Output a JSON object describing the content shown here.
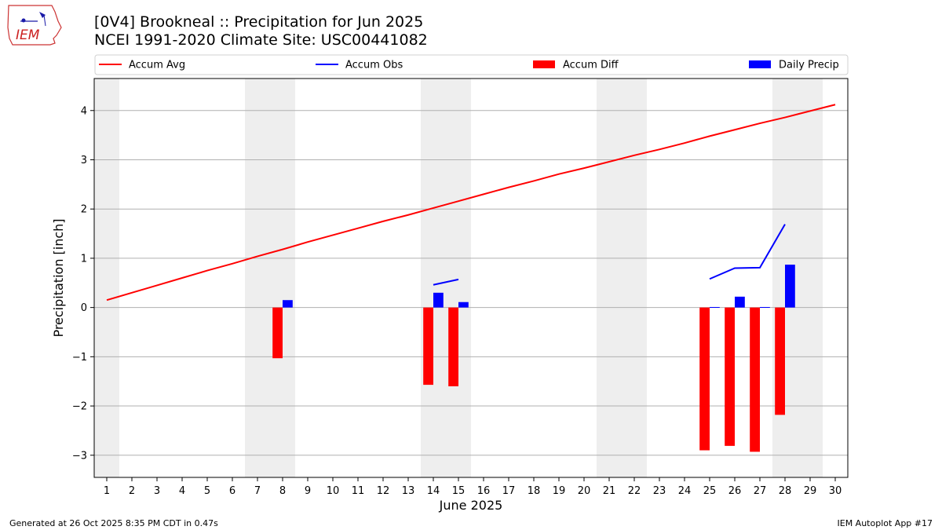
{
  "header": {
    "title_line1": "[0V4] Brookneal :: Precipitation for Jun 2025",
    "title_line2": "NCEI 1991-2020 Climate Site: USC00441082"
  },
  "footer": {
    "generated": "Generated at 26 Oct 2025 8:35 PM CDT in 0.47s",
    "app": "IEM Autoplot App #17"
  },
  "logo": {
    "text": "IEM"
  },
  "chart_data": {
    "type": "bar",
    "title": "[0V4] Brookneal :: Precipitation for Jun 2025",
    "subtitle": "NCEI 1991-2020 Climate Site: USC00441082",
    "xlabel": "June 2025",
    "ylabel": "Precipitation [inch]",
    "xlim": [
      0.5,
      30.5
    ],
    "ylim": [
      -3.45,
      4.65
    ],
    "x_ticks": [
      1,
      2,
      3,
      4,
      5,
      6,
      7,
      8,
      9,
      10,
      11,
      12,
      13,
      14,
      15,
      16,
      17,
      18,
      19,
      20,
      21,
      22,
      23,
      24,
      25,
      26,
      27,
      28,
      29,
      30
    ],
    "y_ticks": [
      -3,
      -2,
      -1,
      0,
      1,
      2,
      3,
      4
    ],
    "y_tick_labels": [
      "−3",
      "−2",
      "−1",
      "0",
      "1",
      "2",
      "3",
      "4"
    ],
    "grid": "horizontal",
    "legend_position": "top",
    "weekend_shading": [
      [
        0.5,
        1.5
      ],
      [
        6.5,
        8.5
      ],
      [
        13.5,
        15.5
      ],
      [
        20.5,
        22.5
      ],
      [
        27.5,
        29.5
      ]
    ],
    "colors": {
      "accum_avg": "#ff0000",
      "accum_obs": "#0000ff",
      "accum_diff": "#ff0000",
      "daily_precip": "#0000ff",
      "weekend": "#eeeeee",
      "grid": "#b0b0b0"
    },
    "legend": [
      {
        "key": "accum_avg",
        "label": "Accum Avg",
        "kind": "line"
      },
      {
        "key": "accum_obs",
        "label": "Accum Obs",
        "kind": "line"
      },
      {
        "key": "accum_diff",
        "label": "Accum Diff",
        "kind": "bar"
      },
      {
        "key": "daily_precip",
        "label": "Daily Precip",
        "kind": "bar"
      }
    ],
    "series": [
      {
        "name": "Accum Avg",
        "type": "line",
        "x": [
          1,
          2,
          3,
          4,
          5,
          6,
          7,
          8,
          9,
          10,
          11,
          12,
          13,
          14,
          15,
          16,
          17,
          18,
          19,
          20,
          21,
          22,
          23,
          24,
          25,
          26,
          27,
          28,
          29,
          30
        ],
        "values": [
          0.15,
          0.3,
          0.45,
          0.6,
          0.75,
          0.89,
          1.04,
          1.18,
          1.33,
          1.47,
          1.61,
          1.75,
          1.88,
          2.02,
          2.16,
          2.3,
          2.44,
          2.57,
          2.71,
          2.83,
          2.96,
          3.09,
          3.21,
          3.34,
          3.48,
          3.61,
          3.74,
          3.86,
          3.99,
          4.12
        ]
      },
      {
        "name": "Accum Obs",
        "type": "line",
        "segments": [
          {
            "x": [
              14,
              15
            ],
            "values": [
              0.46,
              0.57
            ]
          },
          {
            "x": [
              25,
              26,
              27,
              28
            ],
            "values": [
              0.58,
              0.8,
              0.81,
              1.69
            ]
          }
        ]
      },
      {
        "name": "Accum Diff",
        "type": "bar",
        "x": [
          8,
          14,
          15,
          25,
          26,
          27,
          28
        ],
        "values": [
          -1.03,
          -1.57,
          -1.6,
          -2.9,
          -2.81,
          -2.93,
          -2.18
        ]
      },
      {
        "name": "Daily Precip",
        "type": "bar",
        "x": [
          8,
          14,
          15,
          25,
          26,
          27,
          28
        ],
        "values": [
          0.15,
          0.3,
          0.11,
          0.01,
          0.22,
          0.01,
          0.87
        ]
      }
    ]
  }
}
